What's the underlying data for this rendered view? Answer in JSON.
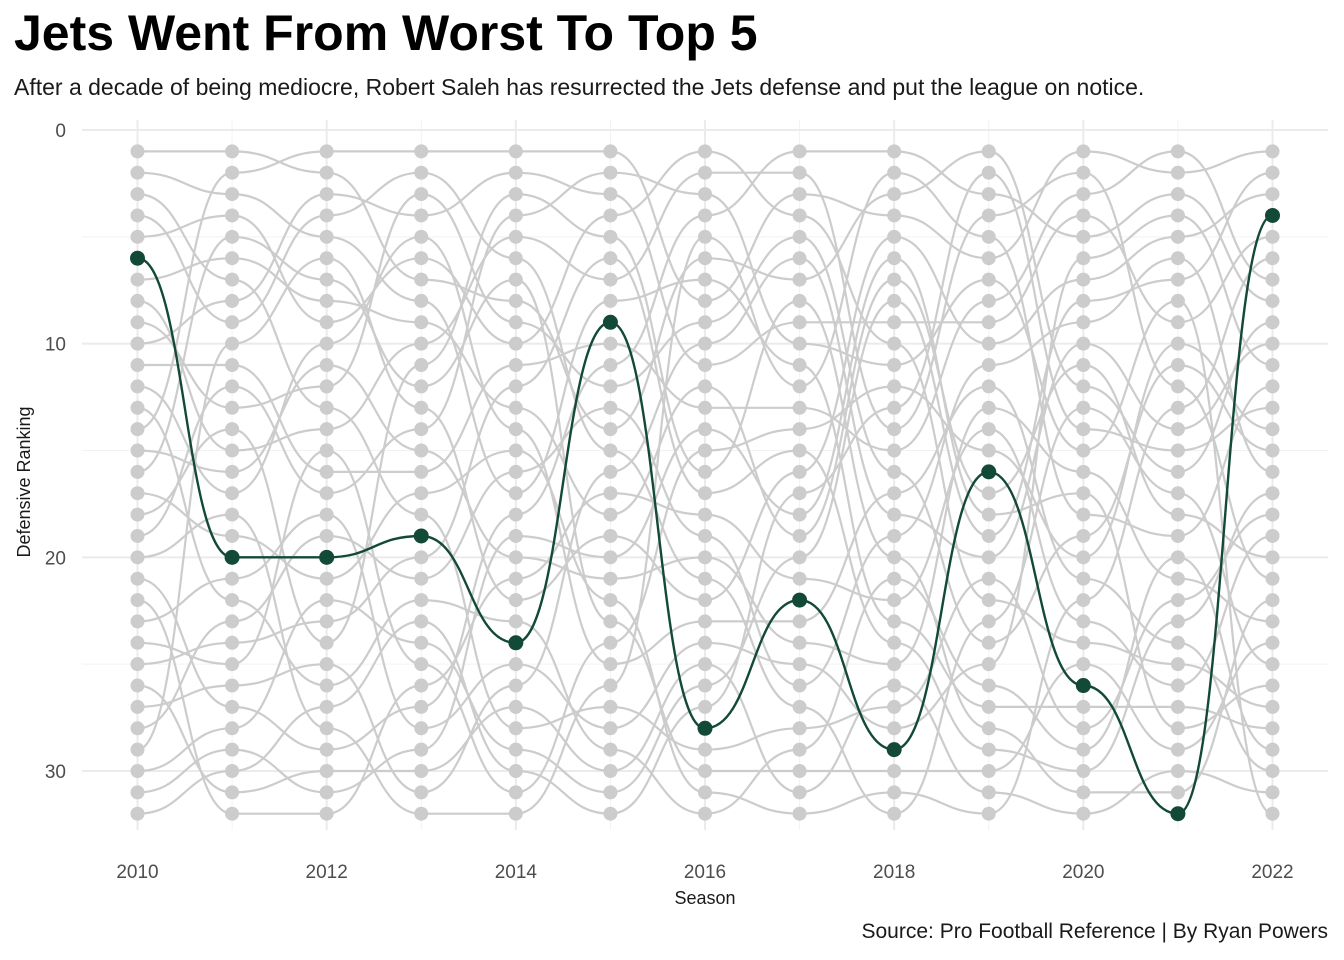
{
  "chart_data": {
    "type": "line",
    "title": "Jets Went From Worst To Top 5",
    "subtitle": "After a decade of being mediocre, Robert Saleh has resurrected the Jets defense and put the league on notice.",
    "caption": "Source: Pro Football Reference | By Ryan Powers",
    "xlabel": "Season",
    "ylabel": "Defensive Ranking",
    "x": [
      2010,
      2011,
      2012,
      2013,
      2014,
      2015,
      2016,
      2017,
      2018,
      2019,
      2020,
      2021,
      2022
    ],
    "xticks": [
      "2010",
      "2012",
      "2014",
      "2016",
      "2018",
      "2020",
      "2022"
    ],
    "yticks": [
      "0",
      "10",
      "20",
      "30"
    ],
    "ylim": [
      0,
      32
    ],
    "y_reversed": true,
    "ranks_per_season": 32,
    "highlight_series": {
      "values": [
        6,
        20,
        20,
        19,
        24,
        9,
        28,
        22,
        29,
        16,
        26,
        32,
        4
      ],
      "color": "#134a37"
    },
    "other_series_color": "#cccccc",
    "grid": true,
    "legend": "none"
  }
}
